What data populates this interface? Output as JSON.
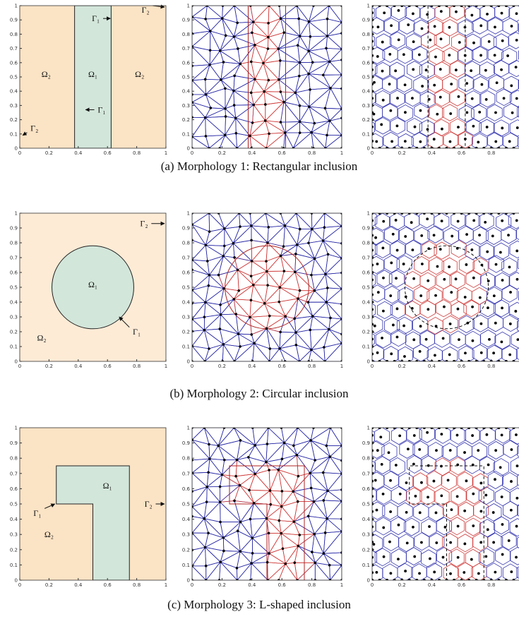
{
  "axes": {
    "xticks": [
      0,
      0.2,
      0.4,
      0.6,
      0.8,
      1
    ],
    "yticks": [
      0,
      0.1,
      0.2,
      0.3,
      0.4,
      0.5,
      0.6,
      0.7,
      0.8,
      0.9,
      1
    ]
  },
  "rows": [
    {
      "caption": "(a) Morphology 1: Rectangular inclusion",
      "labels": [
        "Ω₂",
        "Ω₁",
        "Ω₂",
        "Γ₁",
        "Γ₁",
        "Γ₂",
        "Γ₂"
      ]
    },
    {
      "caption": "(b) Morphology 2: Circular inclusion",
      "labels": [
        "Γ₂",
        "Ω₁",
        "Γ₁",
        "Ω₂"
      ]
    },
    {
      "caption": "(c) Morphology 3: L-shaped inclusion",
      "labels": [
        "Ω₁",
        "Γ₁",
        "Γ₂",
        "Ω₂"
      ]
    }
  ]
}
